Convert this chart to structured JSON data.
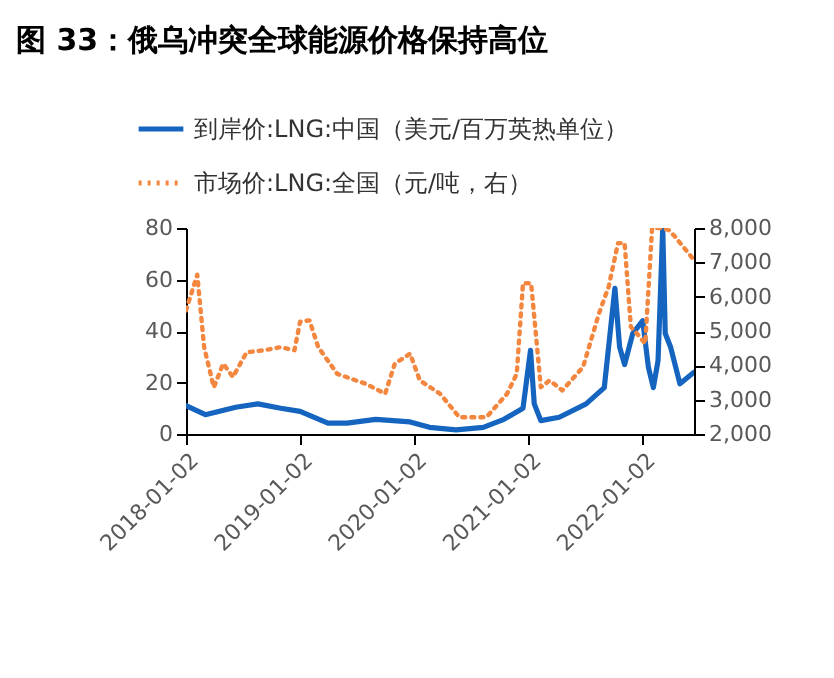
{
  "chart_data": {
    "type": "line",
    "title": "图 33：俄乌冲突全球能源价格保持高位",
    "series": [
      {
        "name": "到岸价:LNG:中国（美元/百万英热单位）",
        "color": "#1565c0",
        "line_style": "solid",
        "x": [
          "2018-01-02",
          "2018-03-05",
          "2018-06-10",
          "2018-08-20",
          "2018-11-01",
          "2019-01-02",
          "2019-04-01",
          "2019-06-01",
          "2019-09-01",
          "2019-12-20",
          "2020-02-20",
          "2020-05-15",
          "2020-08-10",
          "2020-10-15",
          "2020-12-15",
          "2021-01-08",
          "2021-01-20",
          "2021-02-10",
          "2021-04-10",
          "2021-07-05",
          "2021-09-01",
          "2021-10-05",
          "2021-10-20",
          "2021-11-05",
          "2021-12-01",
          "2022-01-02",
          "2022-01-20",
          "2022-02-05",
          "2022-02-20",
          "2022-03-07",
          "2022-03-15",
          "2022-04-01",
          "2022-05-01",
          "2022-06-15"
        ],
        "values": [
          11,
          7.5,
          10.4,
          11.7,
          10,
          8.8,
          4.2,
          4.2,
          5.7,
          4.7,
          2.6,
          1.6,
          2.6,
          5.7,
          10,
          32.5,
          11.7,
          5.2,
          6.5,
          11.7,
          18,
          56.6,
          33.8,
          27,
          39,
          44,
          26,
          18,
          28.5,
          80,
          39,
          33.8,
          19.5,
          24
        ]
      },
      {
        "name": "市场价:LNG:全国（元/吨，右）",
        "color": "#f4873f",
        "line_style": "dotted",
        "axis": "y2",
        "x": [
          "2018-01-02",
          "2018-02-07",
          "2018-03-01",
          "2018-04-01",
          "2018-05-01",
          "2018-06-01",
          "2018-07-15",
          "2018-09-10",
          "2018-11-01",
          "2018-12-15",
          "2019-01-02",
          "2019-02-01",
          "2019-03-01",
          "2019-05-01",
          "2019-08-01",
          "2019-10-01",
          "2019-11-01",
          "2019-12-20",
          "2020-01-20",
          "2020-03-25",
          "2020-05-25",
          "2020-08-20",
          "2020-10-25",
          "2020-11-25",
          "2020-12-15",
          "2021-01-10",
          "2021-02-10",
          "2021-03-10",
          "2021-04-20",
          "2021-06-25",
          "2021-08-15",
          "2021-09-15",
          "2021-10-15",
          "2021-11-05",
          "2021-11-25",
          "2021-12-15",
          "2022-01-10",
          "2022-02-01",
          "2022-02-25",
          "2022-03-25",
          "2022-04-15",
          "2022-06-15"
        ],
        "values": [
          5600,
          6640,
          4530,
          3360,
          4050,
          3660,
          4380,
          4440,
          4530,
          4440,
          5270,
          5310,
          4530,
          3750,
          3460,
          3170,
          4050,
          4340,
          3560,
          3170,
          2490,
          2490,
          3170,
          3750,
          6390,
          6390,
          3360,
          3560,
          3270,
          3950,
          5510,
          6290,
          7560,
          7560,
          5120,
          4920,
          4630,
          8000,
          8000,
          7950,
          7750,
          7070
        ]
      }
    ],
    "xlim": [
      "2018-01-02",
      "2022-06-15"
    ],
    "xticks": [
      "2018-01-02",
      "2019-01-02",
      "2020-01-02",
      "2021-01-02",
      "2022-01-02"
    ],
    "ylim": [
      0,
      80
    ],
    "yticks": [
      0,
      20,
      40,
      60,
      80
    ],
    "y2lim": [
      2000,
      8000
    ],
    "y2ticks": [
      {
        "value": 2000,
        "label": "2,000"
      },
      {
        "value": 3000,
        "label": "3,000"
      },
      {
        "value": 4000,
        "label": "4,000"
      },
      {
        "value": 5000,
        "label": "5,000"
      },
      {
        "value": 6000,
        "label": "6,000"
      },
      {
        "value": 7000,
        "label": "7,000"
      },
      {
        "value": 8000,
        "label": "8,000"
      }
    ],
    "legend": "top"
  }
}
